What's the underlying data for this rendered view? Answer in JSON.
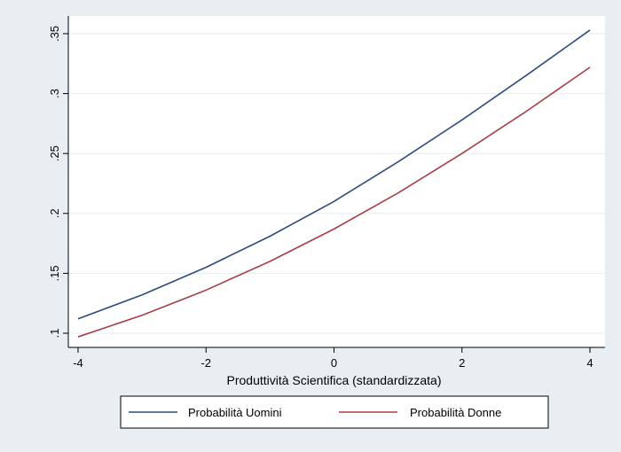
{
  "colors": {
    "outer_background": "#e9eef2",
    "plot_background": "#ffffff",
    "grid": "#e6ebef",
    "axis": "#000000",
    "series_men": "#2f4b7c",
    "series_women": "#a83e47"
  },
  "chart_data": {
    "type": "line",
    "title": "",
    "xlabel": "Produttività Scientifica (standardizzata)",
    "ylabel": "",
    "xlim": [
      -4,
      4
    ],
    "ylim": [
      0.1,
      0.35
    ],
    "x_ticks": [
      -4,
      -2,
      0,
      2,
      4
    ],
    "x_tick_labels": [
      "-4",
      "-2",
      "0",
      "2",
      "4"
    ],
    "y_ticks": [
      0.1,
      0.15,
      0.2,
      0.25,
      0.3,
      0.35
    ],
    "y_tick_labels": [
      ".1",
      ".15",
      ".2",
      ".25",
      ".3",
      ".35"
    ],
    "grid": true,
    "legend_position": "bottom",
    "x": [
      -4,
      -3,
      -2,
      -1,
      0,
      1,
      2,
      3,
      4
    ],
    "series": [
      {
        "name": "Probabilità Uomini",
        "color": "#2f4b7c",
        "values": [
          0.112,
          0.132,
          0.155,
          0.181,
          0.21,
          0.243,
          0.278,
          0.315,
          0.353
        ]
      },
      {
        "name": "Probabilità Donne",
        "color": "#a83e47",
        "values": [
          0.097,
          0.115,
          0.136,
          0.16,
          0.187,
          0.217,
          0.25,
          0.285,
          0.322
        ]
      }
    ]
  }
}
